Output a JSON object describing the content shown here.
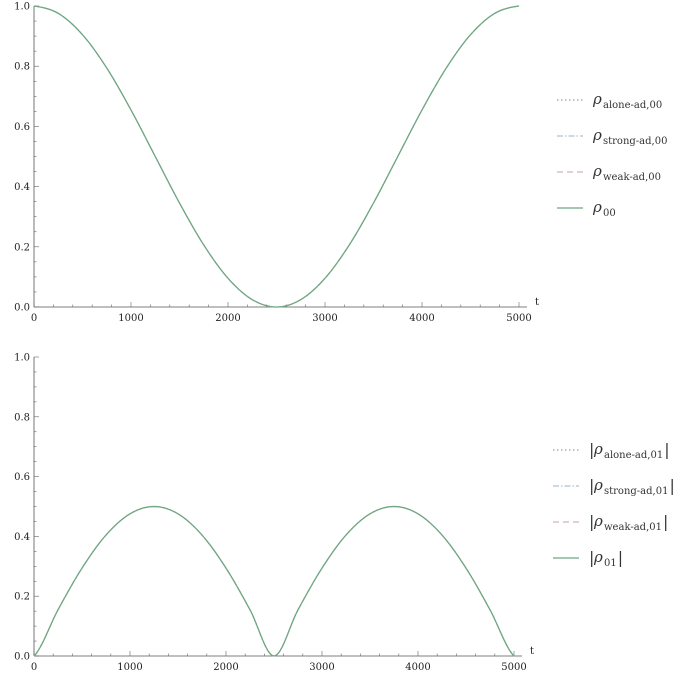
{
  "chart_data": [
    {
      "type": "line",
      "xlim": [
        0,
        5000
      ],
      "ylim": [
        0,
        1.0
      ],
      "xlabel": "t",
      "ylabel": "",
      "grid": false,
      "legend_position": "right",
      "x_ticks": [
        0,
        1000,
        2000,
        3000,
        4000,
        5000
      ],
      "y_ticks": [
        "0.0",
        "0.2",
        "0.4",
        "0.6",
        "0.8",
        "1.0"
      ],
      "x": [
        0,
        250,
        500,
        750,
        1000,
        1250,
        1500,
        1750,
        2000,
        2250,
        2500,
        2750,
        3000,
        3250,
        3500,
        3750,
        4000,
        4250,
        4500,
        4750,
        5000
      ],
      "series": [
        {
          "name": "ρ alone-ad,00",
          "sym": "ρ",
          "sub": "alone-ad,00",
          "abs": false,
          "style": "dotted",
          "color": "#7a8aa8",
          "values": [
            1.0,
            0.9755,
            0.9045,
            0.7939,
            0.6545,
            0.5,
            0.3455,
            0.2061,
            0.0955,
            0.0245,
            0.0,
            0.0245,
            0.0955,
            0.2061,
            0.3455,
            0.5,
            0.6545,
            0.7939,
            0.9045,
            0.9755,
            1.0
          ]
        },
        {
          "name": "ρ strong-ad,00",
          "sym": "ρ",
          "sub": "strong-ad,00",
          "abs": false,
          "style": "dashdot",
          "color": "#9ab2c8",
          "values": [
            1.0,
            0.9755,
            0.9045,
            0.7939,
            0.6545,
            0.5,
            0.3455,
            0.2061,
            0.0955,
            0.0245,
            0.0,
            0.0245,
            0.0955,
            0.2061,
            0.3455,
            0.5,
            0.6545,
            0.7939,
            0.9045,
            0.9755,
            1.0
          ]
        },
        {
          "name": "ρ weak-ad,00",
          "sym": "ρ",
          "sub": "weak-ad,00",
          "abs": false,
          "style": "dashed",
          "color": "#c9a0a8",
          "values": [
            1.0,
            0.9755,
            0.9045,
            0.7939,
            0.6545,
            0.5,
            0.3455,
            0.2061,
            0.0955,
            0.0245,
            0.0,
            0.0245,
            0.0955,
            0.2061,
            0.3455,
            0.5,
            0.6545,
            0.7939,
            0.9045,
            0.9755,
            1.0
          ]
        },
        {
          "name": "ρ 00",
          "sym": "ρ",
          "sub": "00",
          "abs": false,
          "style": "solid",
          "color": "#6fa882",
          "values": [
            1.0,
            0.9755,
            0.9045,
            0.7939,
            0.6545,
            0.5,
            0.3455,
            0.2061,
            0.0955,
            0.0245,
            0.0,
            0.0245,
            0.0955,
            0.2061,
            0.3455,
            0.5,
            0.6545,
            0.7939,
            0.9045,
            0.9755,
            1.0
          ]
        }
      ]
    },
    {
      "type": "line",
      "xlim": [
        0,
        5000
      ],
      "ylim": [
        0,
        1.0
      ],
      "xlabel": "t",
      "ylabel": "",
      "grid": false,
      "legend_position": "right",
      "x_ticks": [
        0,
        1000,
        2000,
        3000,
        4000,
        5000
      ],
      "y_ticks": [
        "0.0",
        "0.2",
        "0.4",
        "0.6",
        "0.8",
        "1.0"
      ],
      "x": [
        0,
        250,
        500,
        750,
        1000,
        1250,
        1500,
        1750,
        2000,
        2250,
        2500,
        2750,
        3000,
        3250,
        3500,
        3750,
        4000,
        4250,
        4500,
        4750,
        5000
      ],
      "series": [
        {
          "name": "|ρ alone-ad,01|",
          "sym": "ρ",
          "sub": "alone-ad,01",
          "abs": true,
          "style": "dotted",
          "color": "#7a8aa8",
          "values": [
            0.0,
            0.1545,
            0.2939,
            0.4045,
            0.4755,
            0.5,
            0.4755,
            0.4045,
            0.2939,
            0.1545,
            0.0,
            0.1545,
            0.2939,
            0.4045,
            0.4755,
            0.5,
            0.4755,
            0.4045,
            0.2939,
            0.1545,
            0.0
          ]
        },
        {
          "name": "|ρ strong-ad,01|",
          "sym": "ρ",
          "sub": "strong-ad,01",
          "abs": true,
          "style": "dashdot",
          "color": "#9ab2c8",
          "values": [
            0.0,
            0.1545,
            0.2939,
            0.4045,
            0.4755,
            0.5,
            0.4755,
            0.4045,
            0.2939,
            0.1545,
            0.0,
            0.1545,
            0.2939,
            0.4045,
            0.4755,
            0.5,
            0.4755,
            0.4045,
            0.2939,
            0.1545,
            0.0
          ]
        },
        {
          "name": "|ρ weak-ad,01|",
          "sym": "ρ",
          "sub": "weak-ad,01",
          "abs": true,
          "style": "dashed",
          "color": "#c9a0a8",
          "values": [
            0.0,
            0.1545,
            0.2939,
            0.4045,
            0.4755,
            0.5,
            0.4755,
            0.4045,
            0.2939,
            0.1545,
            0.0,
            0.1545,
            0.2939,
            0.4045,
            0.4755,
            0.5,
            0.4755,
            0.4045,
            0.2939,
            0.1545,
            0.0
          ]
        },
        {
          "name": "|ρ 01|",
          "sym": "ρ",
          "sub": "01",
          "abs": true,
          "style": "solid",
          "color": "#6fa882",
          "values": [
            0.0,
            0.1545,
            0.2939,
            0.4045,
            0.4755,
            0.5,
            0.4755,
            0.4045,
            0.2939,
            0.1545,
            0.0,
            0.1545,
            0.2939,
            0.4045,
            0.4755,
            0.5,
            0.4755,
            0.4045,
            0.2939,
            0.1545,
            0.0
          ]
        }
      ]
    }
  ]
}
